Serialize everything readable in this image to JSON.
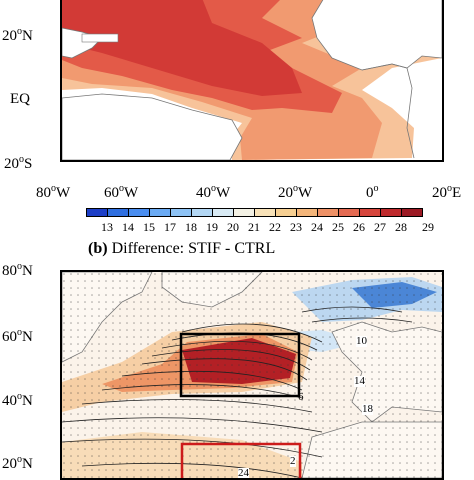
{
  "panel_a": {
    "lat_labels": [
      "20",
      "EQ",
      "20"
    ],
    "lat_suffixes": [
      "N",
      "",
      "S"
    ],
    "lon_labels": [
      "80",
      "60",
      "40",
      "20",
      "0",
      "20"
    ],
    "lon_suffixes": [
      "W",
      "W",
      "W",
      "W",
      "",
      "E"
    ],
    "degree_mark": "o"
  },
  "colorbar": {
    "labels": [
      "13",
      "14",
      "15",
      "17",
      "18",
      "19",
      "20",
      "21",
      "22",
      "23",
      "24",
      "25",
      "26",
      "27",
      "28",
      "29"
    ],
    "colors": [
      "#1d3fc7",
      "#2f6fe0",
      "#4a8ef0",
      "#6aaaf3",
      "#8ec3f5",
      "#b3d7f4",
      "#d8eaf4",
      "#f3f1e4",
      "#f8e2b8",
      "#f6cf92",
      "#f3b57a",
      "#ee9166",
      "#e46a52",
      "#d6453c",
      "#bf2a2d",
      "#9c1a24"
    ]
  },
  "panel_b": {
    "title_tag": "(b)",
    "title_text": "Difference: STIF - CTRL",
    "lat_labels": [
      "80",
      "60",
      "40",
      "20"
    ],
    "lat_suffix": "N",
    "contour_labels": [
      "10",
      "14",
      "18",
      "6",
      "24",
      "2"
    ],
    "colors": {
      "black_box": "#000000",
      "red_box": "#cc1b1b",
      "warm_core": "#b32025",
      "cool": "#4b86d6"
    }
  }
}
